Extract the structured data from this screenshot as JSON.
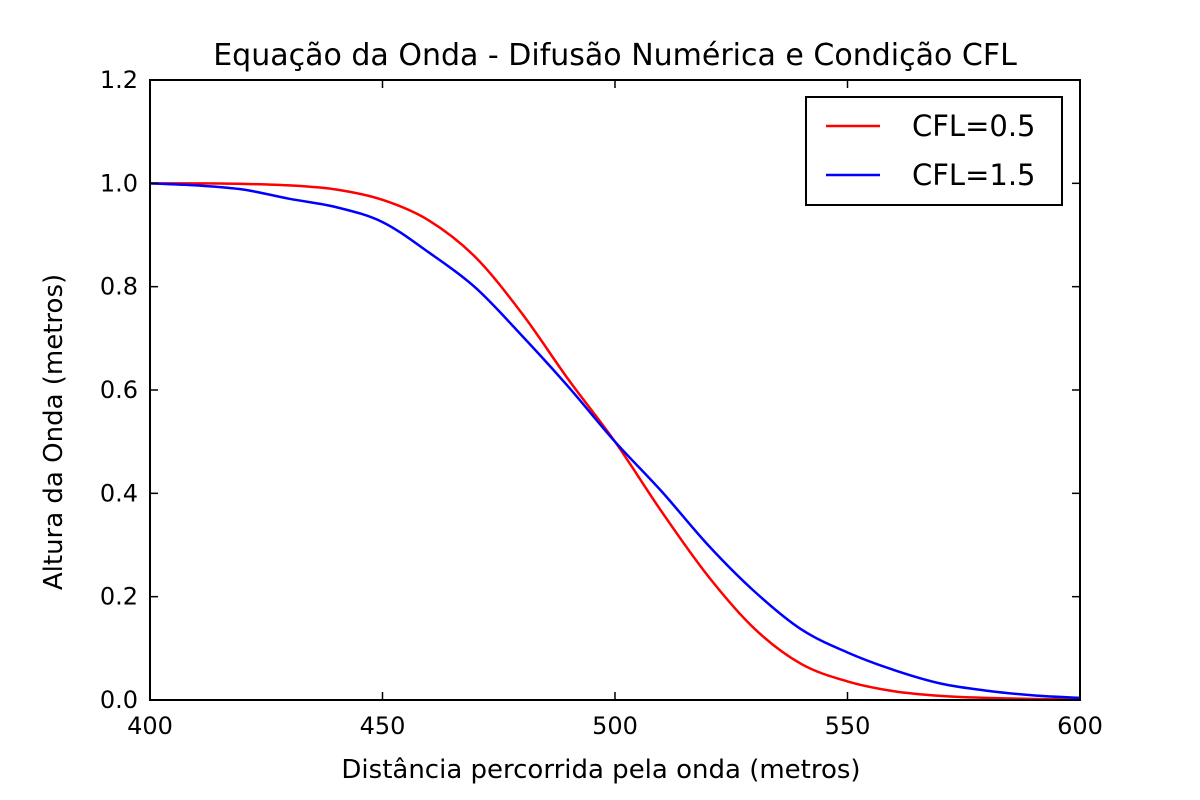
{
  "chart_data": {
    "type": "line",
    "title": "Equação da Onda - Difusão Numérica e Condição CFL",
    "xlabel": "Distância percorrida pela onda (metros)",
    "ylabel": "Altura da Onda (metros)",
    "xlim": [
      400,
      600
    ],
    "ylim": [
      0.0,
      1.2
    ],
    "x_ticks": [
      400,
      450,
      500,
      550,
      600
    ],
    "x_tick_labels": [
      "400",
      "450",
      "500",
      "550",
      "600"
    ],
    "y_ticks": [
      0.0,
      0.2,
      0.4,
      0.6,
      0.8,
      1.0,
      1.2
    ],
    "y_tick_labels": [
      "0.0",
      "0.2",
      "0.4",
      "0.6",
      "0.8",
      "1.0",
      "1.2"
    ],
    "grid": false,
    "legend_position": "top-right",
    "series": [
      {
        "name": "CFL=0.5",
        "color": "#ff0000",
        "x": [
          400,
          410,
          420,
          430,
          440,
          450,
          460,
          470,
          480,
          490,
          500,
          510,
          520,
          530,
          540,
          550,
          560,
          570,
          580,
          590,
          600
        ],
        "y": [
          1.0,
          1.0,
          0.999,
          0.996,
          0.988,
          0.968,
          0.928,
          0.857,
          0.748,
          0.62,
          0.5,
          0.365,
          0.24,
          0.138,
          0.07,
          0.036,
          0.017,
          0.008,
          0.004,
          0.002,
          0.001
        ]
      },
      {
        "name": "CFL=1.5",
        "color": "#0000ff",
        "x": [
          400,
          410,
          420,
          430,
          440,
          450,
          460,
          470,
          480,
          490,
          500,
          510,
          520,
          530,
          540,
          550,
          560,
          570,
          580,
          590,
          600
        ],
        "y": [
          1.0,
          0.996,
          0.988,
          0.97,
          0.954,
          0.925,
          0.866,
          0.798,
          0.705,
          0.606,
          0.5,
          0.404,
          0.3,
          0.21,
          0.137,
          0.092,
          0.058,
          0.032,
          0.018,
          0.009,
          0.004
        ]
      }
    ]
  }
}
